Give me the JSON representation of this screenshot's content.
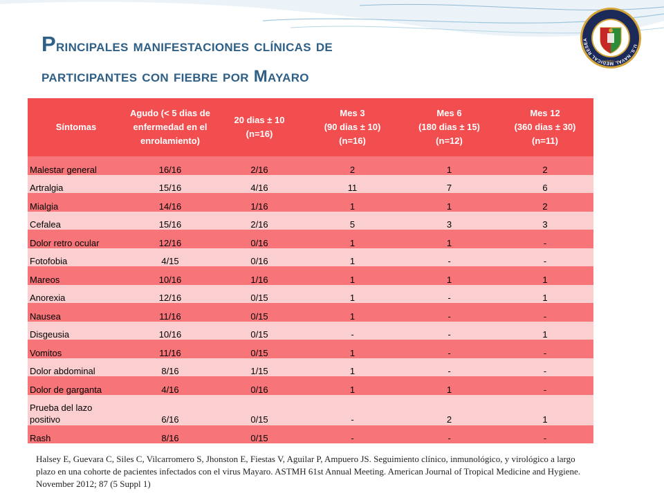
{
  "title": {
    "initial": "P",
    "line1_rest": "rincipales manifestaciones clínicas de",
    "line2": "participantes con fiebre por Mayaro"
  },
  "seal": {
    "ring_text": "U.S. NAVAL MEDICAL RESEARCH UNIT 6",
    "bottom_text": "NAMRU - 6",
    "colors": {
      "ring": "#1c2a5a",
      "gold": "#d4a437",
      "green": "#2e8b3a",
      "red": "#c62828"
    }
  },
  "table": {
    "headers": [
      "Síntomas",
      "Agudo (< 5 dias de\nenfermedad en el\nenrolamiento)",
      "20 dias ± 10\n(n=16)",
      "Mes 3\n(90 dias ± 10)\n(n=16)",
      "Mes 6\n(180 dias ± 15)\n(n=12)",
      "Mes 12\n(360 dias ± 30)\n(n=11)"
    ],
    "rows": [
      [
        "Malestar general",
        "16/16",
        "2/16",
        "2",
        "1",
        "2"
      ],
      [
        "Artralgia",
        "15/16",
        "4/16",
        "11",
        "7",
        "6"
      ],
      [
        "Mialgia",
        "14/16",
        "1/16",
        "1",
        "1",
        "2"
      ],
      [
        "Cefalea",
        "15/16",
        "2/16",
        "5",
        "3",
        "3"
      ],
      [
        "Dolor retro ocular",
        "12/16",
        "0/16",
        "1",
        "1",
        "-"
      ],
      [
        "Fotofobia",
        "4/15",
        "0/16",
        "1",
        "-",
        "-"
      ],
      [
        "Mareos",
        "10/16",
        "1/16",
        "1",
        "1",
        "1"
      ],
      [
        "Anorexia",
        "12/16",
        "0/15",
        "1",
        "-",
        "1"
      ],
      [
        "Nausea",
        "11/16",
        "0/15",
        "1",
        "-",
        "-"
      ],
      [
        "Disgeusia",
        "10/16",
        "0/15",
        "-",
        "-",
        "1"
      ],
      [
        "Vomitos",
        "11/16",
        "0/15",
        "1",
        "-",
        "-"
      ],
      [
        "Dolor abdominal",
        "8/16",
        "1/15",
        "1",
        "-",
        "-"
      ],
      [
        "Dolor de garganta",
        "4/16",
        "0/16",
        "1",
        "1",
        "-"
      ],
      [
        "Prueba del lazo positivo",
        "6/16",
        "0/15",
        "-",
        "2",
        "1"
      ],
      [
        "Rash",
        "8/16",
        "0/15",
        "-",
        "-",
        "-"
      ]
    ]
  },
  "citation": "Halsey E, Guevara C, Siles C, Vilcarromero S, Jhonston E, Fiestas V, Aguilar P, Ampuero JS. Seguimiento clínico, inmunológico, y virológico a largo plazo en una cohorte de pacientes infectados con el virus Mayaro. ASTMH 61st Annual Meeting. American Journal of Tropical Medicine and Hygiene. November 2012; 87 (5 Suppl 1)",
  "theme": {
    "header_color": "#f24d4f",
    "row_dark": "#f77578",
    "row_light": "#fbcfd0",
    "title_color": "#2e5f86"
  }
}
